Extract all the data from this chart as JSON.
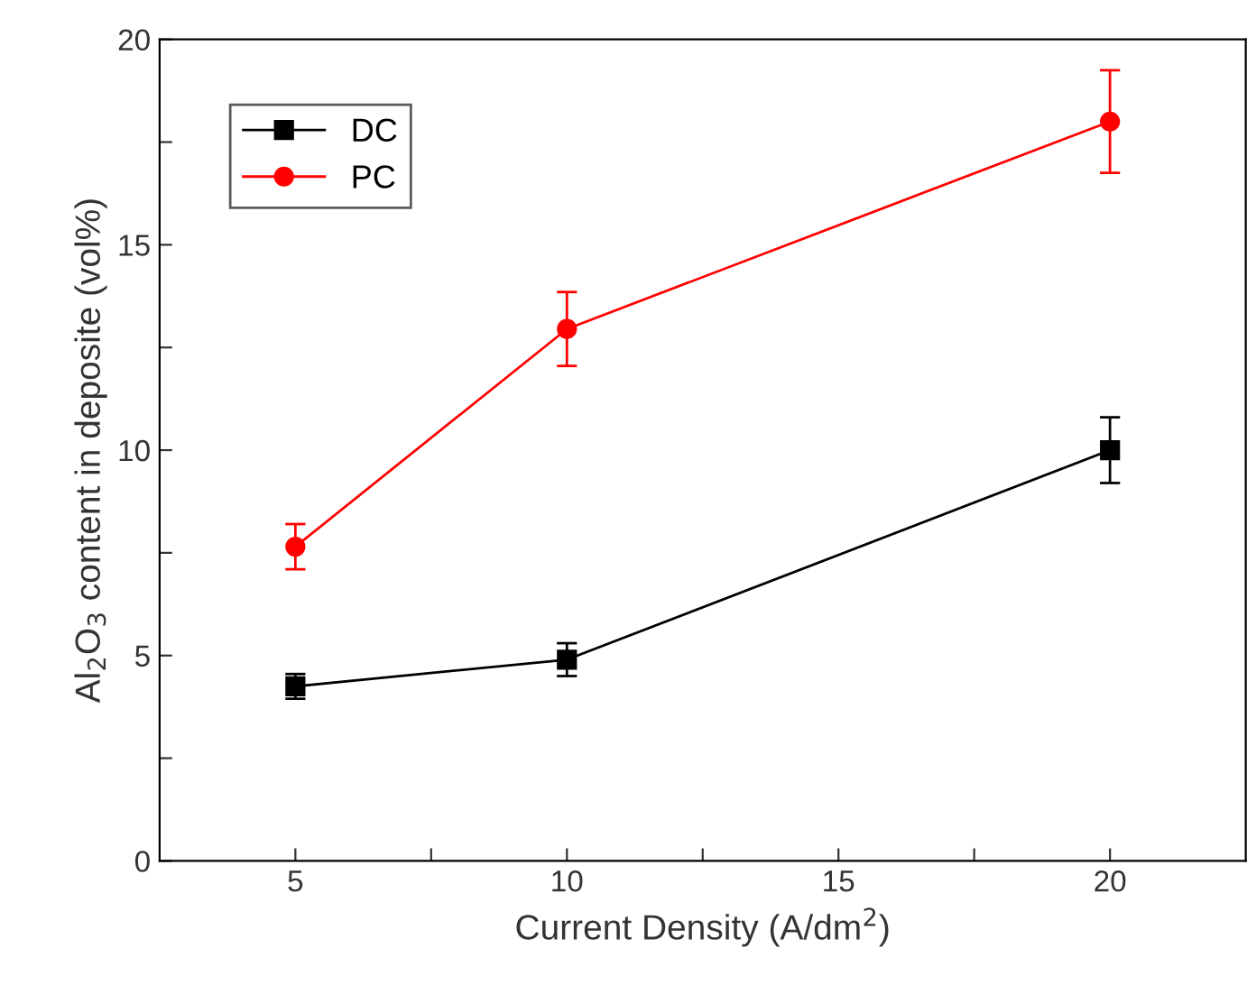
{
  "chart_data": {
    "type": "line",
    "xlabel": "Current Density (A/dm$^{2}$)",
    "ylabel": "Al$_{2}$O$_{3}$ content in deposite (vol%)",
    "x": [
      5,
      10,
      20
    ],
    "series": [
      {
        "name": "DC",
        "color": "#000000",
        "marker": "square",
        "values": [
          4.25,
          4.9,
          10.0
        ],
        "errors": [
          0.3,
          0.4,
          0.8
        ]
      },
      {
        "name": "PC",
        "color": "#ff0000",
        "marker": "circle",
        "values": [
          7.65,
          12.95,
          18.0
        ],
        "errors": [
          0.55,
          0.9,
          1.25
        ]
      }
    ],
    "xlim": [
      2.5,
      22.5
    ],
    "xticks": [
      5,
      {
        "value": 7.5,
        "label": null
      },
      10,
      {
        "value": 12.5,
        "label": null
      },
      15,
      {
        "value": 17.5,
        "label": null
      },
      20
    ],
    "ylim": [
      0,
      20
    ],
    "yticks": [
      0,
      {
        "value": 2.5,
        "label": null
      },
      5,
      {
        "value": 7.5,
        "label": null
      },
      10,
      {
        "value": 12.5,
        "label": null
      },
      15,
      {
        "value": 17.5,
        "label": null
      },
      20
    ],
    "grid": false,
    "legend": "top left",
    "line_style": "solid"
  }
}
